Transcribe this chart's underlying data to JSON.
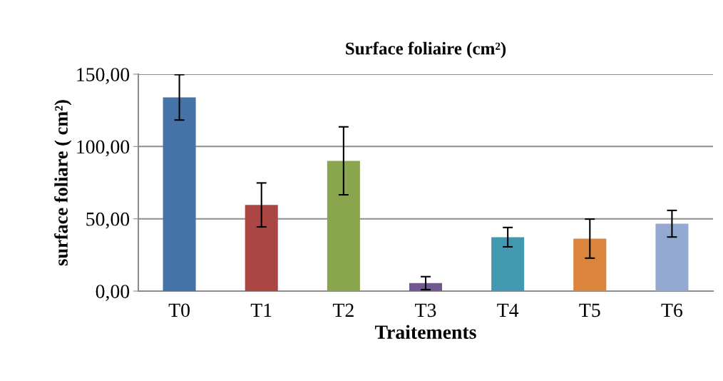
{
  "chart_data": {
    "type": "bar",
    "title": "Surface foliaire (cm²)",
    "xlabel": "Traitements",
    "ylabel": "surface foliare ( cm²)",
    "categories": [
      "T0",
      "T1",
      "T2",
      "T3",
      "T4",
      "T5",
      "T6"
    ],
    "values": [
      134,
      59.6,
      90.1,
      5.5,
      37.3,
      36.3,
      46.6
    ],
    "errors": [
      15.7,
      15.2,
      23.5,
      4.5,
      6.7,
      13.5,
      9.2
    ],
    "colors": [
      "#4572a7",
      "#aa4643",
      "#89a54e",
      "#71588f",
      "#4198af",
      "#db843d",
      "#93a9cf"
    ],
    "ylim": [
      0,
      150
    ],
    "yticks": [
      {
        "value": 0,
        "label": "0,00"
      },
      {
        "value": 50,
        "label": "50,00"
      },
      {
        "value": 100,
        "label": "100,00"
      },
      {
        "value": 150,
        "label": "150,00"
      }
    ],
    "grid": "y",
    "legend": false
  }
}
